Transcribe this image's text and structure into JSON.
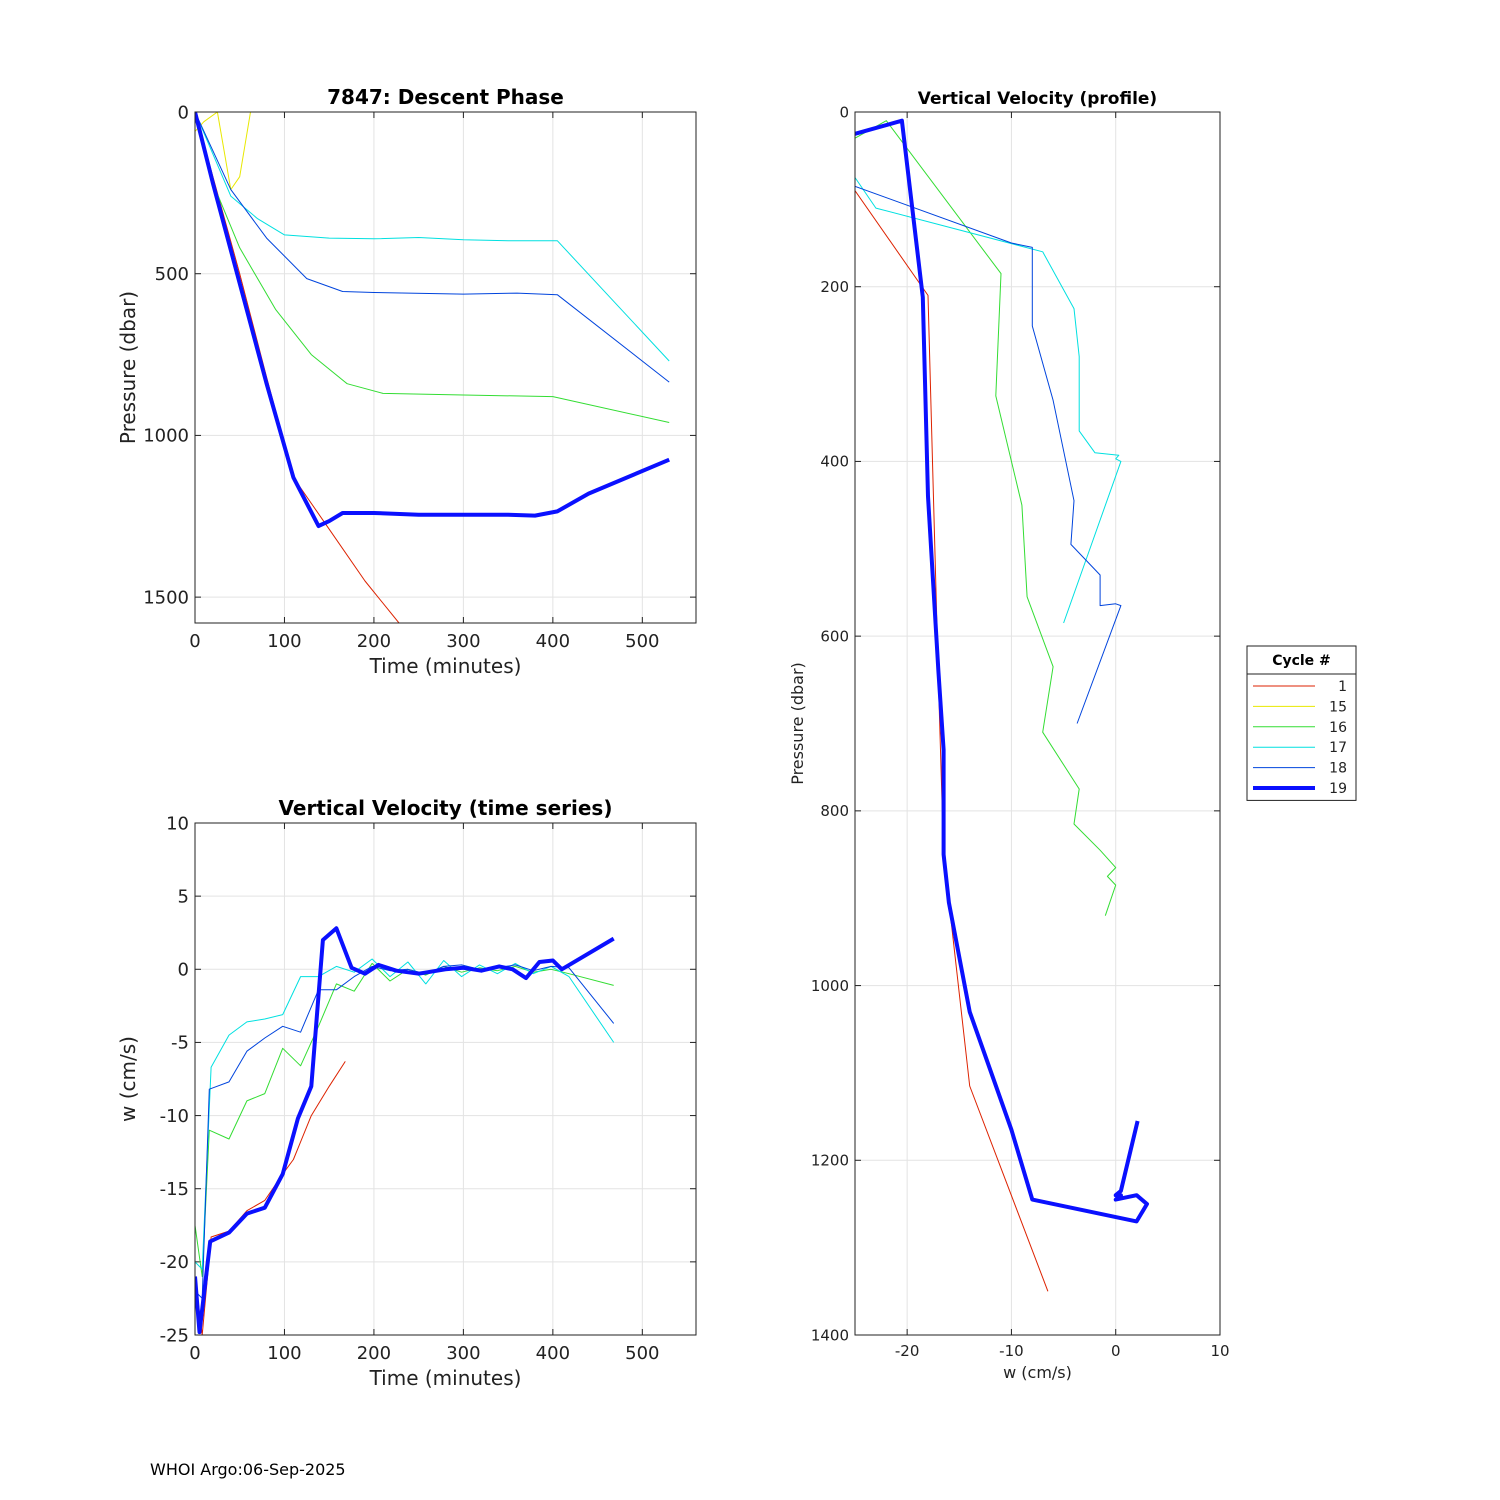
{
  "footer": "WHOI Argo:06-Sep-2025",
  "legend": {
    "title": "Cycle #",
    "entries": [
      {
        "label": "1",
        "color": "#dd2200",
        "width": 1
      },
      {
        "label": "15",
        "color": "#e8e800",
        "width": 1
      },
      {
        "label": "16",
        "color": "#33dd33",
        "width": 1
      },
      {
        "label": "17",
        "color": "#00e0e0",
        "width": 1
      },
      {
        "label": "18",
        "color": "#0044dd",
        "width": 1
      },
      {
        "label": "19",
        "color": "#0a10ff",
        "width": 4
      }
    ]
  },
  "chart_data": [
    {
      "id": "descent",
      "type": "line",
      "title": "7847: Descent Phase",
      "xlabel": "Time (minutes)",
      "ylabel": "Pressure (dbar)",
      "xlim": [
        0,
        560
      ],
      "ylim": [
        0,
        1580
      ],
      "y_reversed": true,
      "grid": true,
      "xticks": [
        0,
        100,
        200,
        300,
        400,
        500
      ],
      "yticks": [
        0,
        500,
        1000,
        1500
      ],
      "series": [
        {
          "name": "1",
          "x": [
            0,
            20,
            50,
            80,
            110,
            150,
            190,
            228
          ],
          "y": [
            0,
            200,
            500,
            820,
            1130,
            1290,
            1450,
            1580
          ]
        },
        {
          "name": "15",
          "x": [
            0,
            10,
            25,
            40,
            50,
            62,
            100,
            200,
            300,
            400,
            480
          ],
          "y": [
            60,
            30,
            0,
            240,
            200,
            0,
            0,
            0,
            0,
            0,
            0
          ]
        },
        {
          "name": "16",
          "x": [
            0,
            20,
            50,
            90,
            130,
            170,
            210,
            300,
            400,
            530
          ],
          "y": [
            0,
            220,
            420,
            610,
            750,
            840,
            870,
            875,
            880,
            960
          ]
        },
        {
          "name": "17",
          "x": [
            0,
            40,
            70,
            100,
            150,
            200,
            250,
            300,
            350,
            405,
            530
          ],
          "y": [
            0,
            260,
            330,
            380,
            390,
            392,
            388,
            395,
            398,
            398,
            770
          ]
        },
        {
          "name": "18",
          "x": [
            0,
            40,
            80,
            125,
            165,
            200,
            300,
            360,
            405,
            530
          ],
          "y": [
            0,
            240,
            390,
            515,
            555,
            558,
            563,
            560,
            565,
            835
          ]
        },
        {
          "name": "19",
          "x": [
            0,
            20,
            50,
            80,
            110,
            138,
            150,
            165,
            200,
            250,
            300,
            350,
            380,
            405,
            440,
            530
          ],
          "y": [
            0,
            220,
            530,
            840,
            1130,
            1280,
            1265,
            1240,
            1240,
            1245,
            1245,
            1245,
            1248,
            1235,
            1180,
            1075
          ]
        }
      ]
    },
    {
      "id": "vv_time",
      "type": "line",
      "title": "Vertical Velocity (time series)",
      "xlabel": "Time (minutes)",
      "ylabel": "w (cm/s)",
      "xlim": [
        0,
        560
      ],
      "ylim": [
        -25,
        10
      ],
      "grid": true,
      "xticks": [
        0,
        100,
        200,
        300,
        400,
        500
      ],
      "yticks": [
        10,
        5,
        0,
        -5,
        -10,
        -15,
        -20,
        -25
      ],
      "series": [
        {
          "name": "1",
          "x": [
            2,
            8,
            18,
            38,
            58,
            78,
            98,
            110,
            130,
            150,
            168
          ],
          "y": [
            -22,
            -25,
            -18.3,
            -17.9,
            -16.5,
            -15.8,
            -14,
            -13,
            -10,
            -8,
            -6.3
          ]
        },
        {
          "name": "16",
          "x": [
            0,
            8,
            16,
            38,
            58,
            78,
            98,
            118,
            138,
            158,
            178,
            198,
            218,
            238,
            258,
            278,
            298,
            318,
            338,
            358,
            378,
            398,
            418,
            468
          ],
          "y": [
            -17.5,
            -21,
            -11,
            -11.6,
            -9,
            -8.5,
            -5.4,
            -6.6,
            -3.9,
            -1,
            -1.5,
            0.4,
            -0.8,
            0,
            -0.4,
            0.2,
            -0.2,
            0.1,
            -0.1,
            0.2,
            -0.2,
            0,
            -0.3,
            -1.1
          ]
        },
        {
          "name": "17",
          "x": [
            0,
            8,
            18,
            38,
            58,
            78,
            98,
            118,
            138,
            158,
            178,
            198,
            218,
            238,
            258,
            278,
            298,
            318,
            338,
            358,
            378,
            398,
            418,
            468
          ],
          "y": [
            -20,
            -20.5,
            -6.7,
            -4.5,
            -3.6,
            -3.4,
            -3.1,
            -0.5,
            -0.5,
            0.2,
            -0.2,
            0.7,
            -0.5,
            0.5,
            -1,
            0.6,
            -0.5,
            0.3,
            -0.3,
            0.4,
            -0.3,
            0.2,
            -0.5,
            -5
          ]
        },
        {
          "name": "18",
          "x": [
            0,
            8,
            16,
            38,
            58,
            78,
            98,
            118,
            138,
            158,
            178,
            198,
            218,
            238,
            258,
            278,
            298,
            318,
            338,
            358,
            378,
            398,
            418,
            468
          ],
          "y": [
            -22,
            -22.5,
            -8.2,
            -7.7,
            -5.6,
            -4.7,
            -3.9,
            -4.3,
            -1.4,
            -1.4,
            -0.5,
            0.2,
            -0.1,
            0,
            -0.3,
            0.2,
            0.3,
            0,
            0.1,
            0.3,
            -0.1,
            0.2,
            0.1,
            -3.7
          ]
        },
        {
          "name": "19",
          "x": [
            0,
            5,
            17,
            38,
            58,
            78,
            98,
            115,
            130,
            143,
            158,
            175,
            190,
            205,
            225,
            250,
            280,
            300,
            320,
            340,
            355,
            370,
            385,
            400,
            410,
            468
          ],
          "y": [
            -21,
            -24.8,
            -18.6,
            -18,
            -16.7,
            -16.3,
            -14,
            -10.2,
            -8,
            2,
            2.8,
            0.1,
            -0.3,
            0.3,
            -0.1,
            -0.3,
            0,
            0.1,
            -0.1,
            0.2,
            0,
            -0.6,
            0.5,
            0.6,
            0,
            2.1
          ]
        }
      ]
    },
    {
      "id": "vv_profile",
      "type": "line",
      "title": "Vertical Velocity (profile)",
      "xlabel": "w (cm/s)",
      "ylabel": "Pressure (dbar)",
      "xlim": [
        -25,
        10
      ],
      "ylim": [
        0,
        1400
      ],
      "y_reversed": true,
      "grid": true,
      "xticks": [
        -20,
        -10,
        0,
        10
      ],
      "yticks": [
        0,
        200,
        400,
        600,
        800,
        1000,
        1200,
        1400
      ],
      "series": [
        {
          "name": "1",
          "x": [
            -25,
            -18,
            -17.5,
            -17,
            -16.5,
            -14,
            -6.5
          ],
          "y": [
            90,
            210,
            430,
            650,
            850,
            1115,
            1350
          ]
        },
        {
          "name": "16",
          "x": [
            -25,
            -22,
            -11,
            -11.5,
            -9,
            -8.5,
            -6,
            -7,
            -3.5,
            -4,
            -1.5,
            0,
            -0.8,
            0,
            -1
          ],
          "y": [
            30,
            10,
            185,
            325,
            450,
            555,
            635,
            710,
            775,
            815,
            845,
            865,
            875,
            885,
            920
          ]
        },
        {
          "name": "17",
          "x": [
            -25,
            -23,
            -7,
            -4,
            -3.5,
            -3.5,
            -2,
            0.3,
            0,
            0.5,
            -5
          ],
          "y": [
            75,
            110,
            160,
            225,
            280,
            365,
            390,
            393,
            397,
            400,
            585
          ]
        },
        {
          "name": "18",
          "x": [
            -25,
            -10,
            -8,
            -8,
            -6,
            -4,
            -4.3,
            -1.5,
            -1.5,
            0,
            0.5,
            -3.7
          ],
          "y": [
            85,
            150,
            155,
            245,
            330,
            445,
            495,
            530,
            565,
            563,
            565,
            700
          ]
        },
        {
          "name": "19",
          "x": [
            -25,
            -20.5,
            -18.5,
            -18,
            -17,
            -16.5,
            -16.5,
            -16,
            -14,
            -10,
            -8,
            2,
            3,
            2,
            0,
            0.5,
            0,
            0.5,
            2.1
          ],
          "y": [
            25,
            10,
            212,
            440,
            640,
            730,
            850,
            905,
            1030,
            1165,
            1245,
            1270,
            1250,
            1240,
            1245,
            1240,
            1240,
            1235,
            1155
          ]
        }
      ]
    }
  ]
}
